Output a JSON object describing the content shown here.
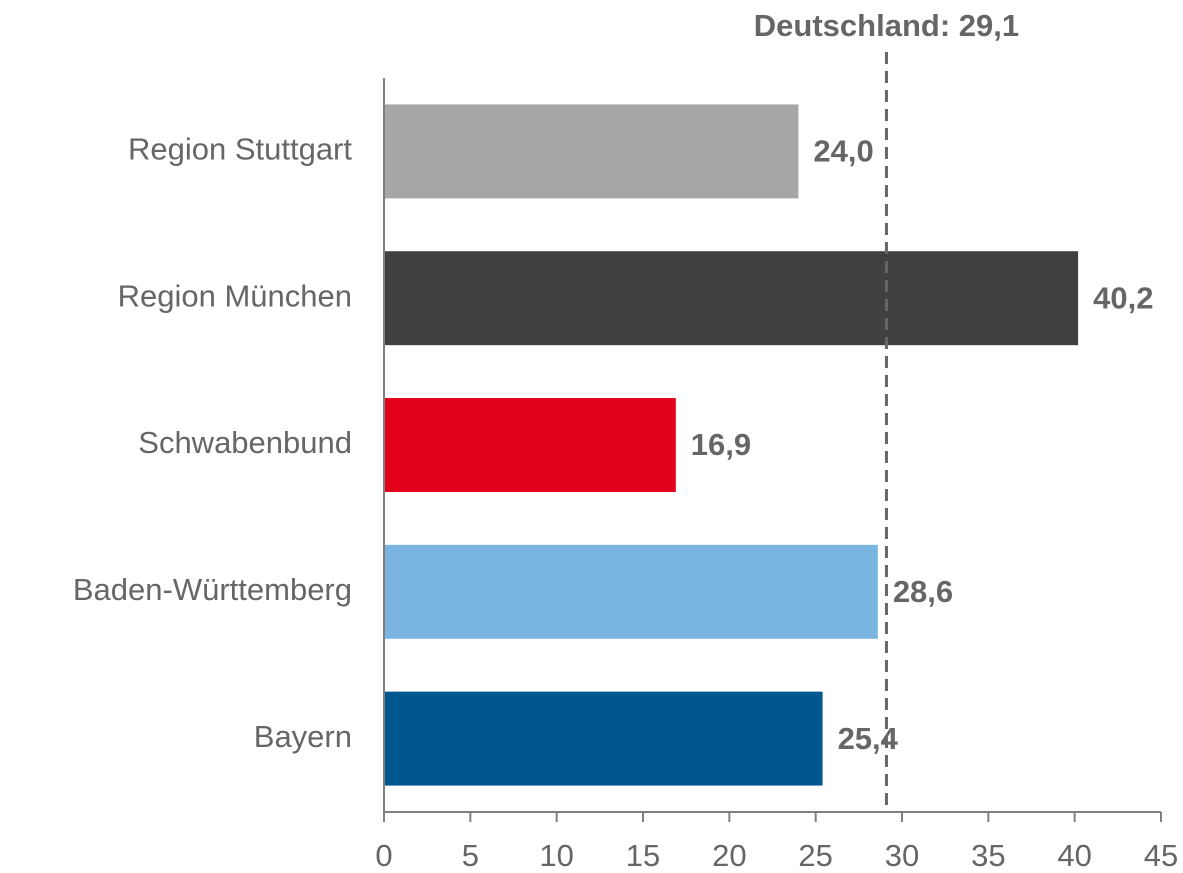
{
  "chart_data": {
    "type": "bar",
    "orientation": "horizontal",
    "categories": [
      "Region Stuttgart",
      "Region München",
      "Schwabenbund",
      "Baden-Württemberg",
      "Bayern"
    ],
    "values": [
      24.0,
      40.2,
      16.9,
      28.6,
      25.4
    ],
    "value_labels": [
      "24,0",
      "40,2",
      "16,9",
      "28,6",
      "25,4"
    ],
    "colors": [
      "#a6a6a6",
      "#404040",
      "#e2001a",
      "#7ab5e2",
      "#00568f"
    ],
    "xlim": [
      0,
      45
    ],
    "xticks": [
      0,
      5,
      10,
      15,
      20,
      25,
      30,
      35,
      40,
      45
    ],
    "reference_line": {
      "label": "Deutschland: 29,1",
      "value": 29.1
    }
  }
}
